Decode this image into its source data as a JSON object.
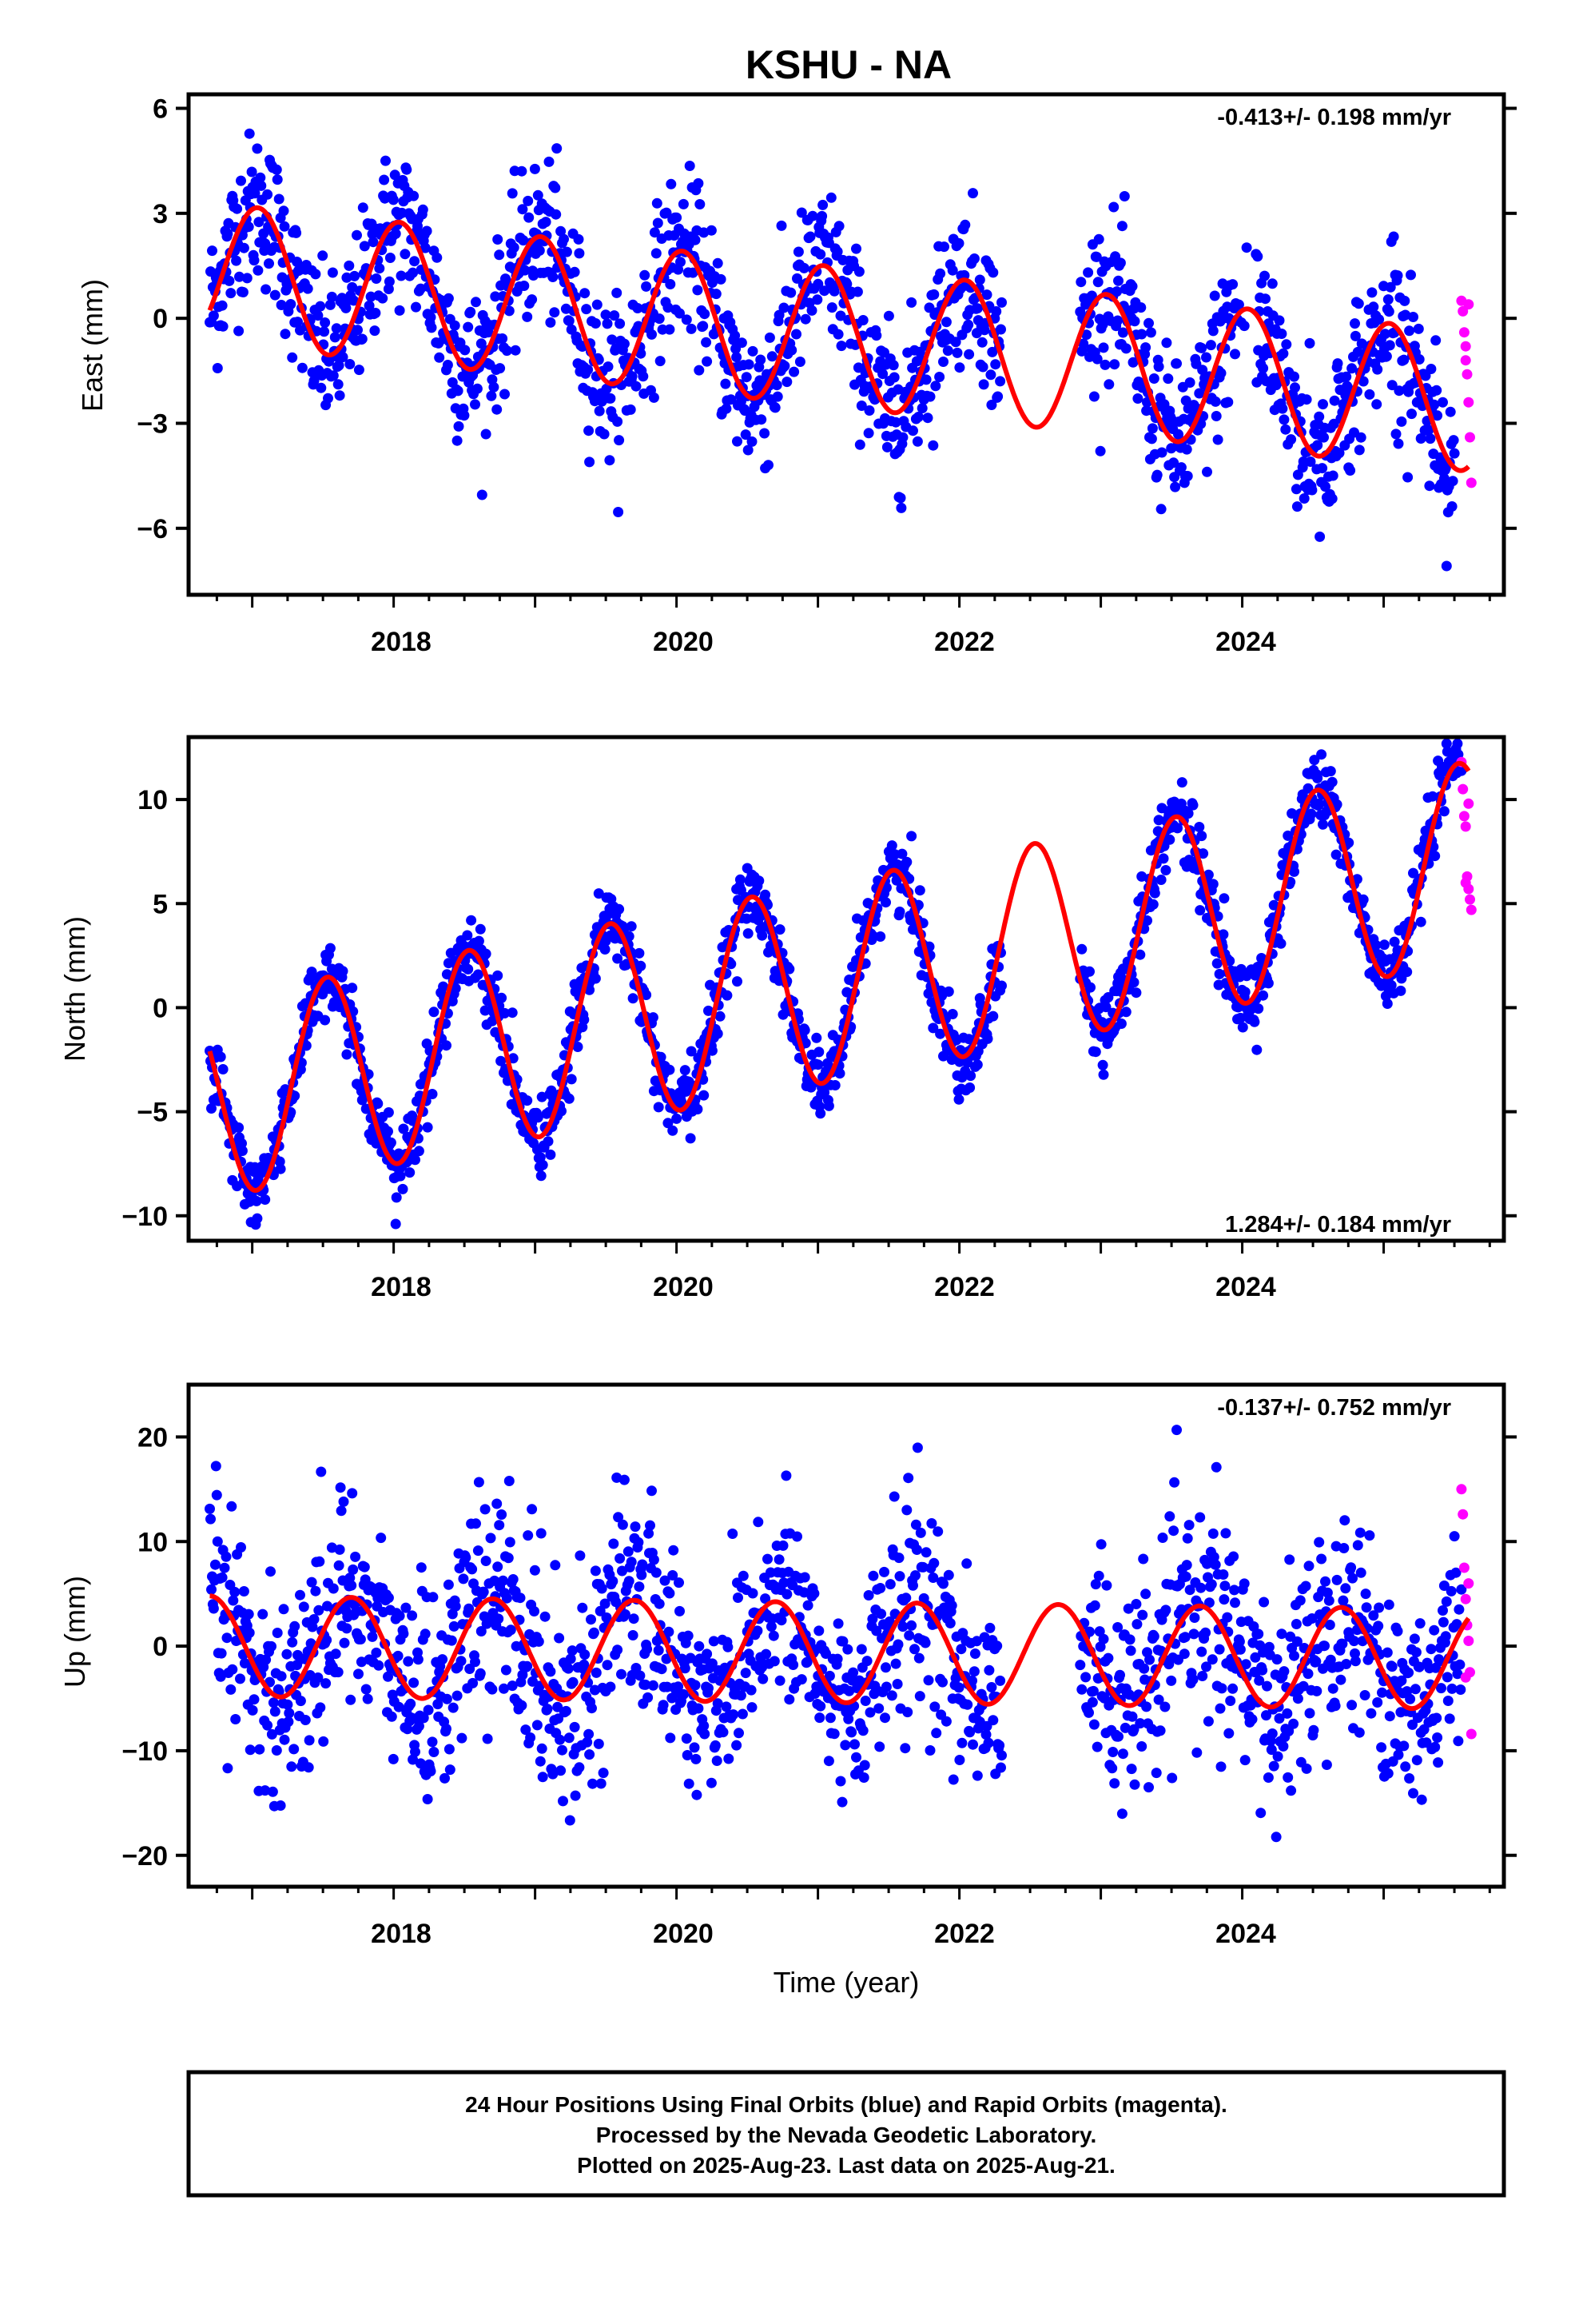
{
  "title": "KSHU - NA",
  "xlabel": "Time (year)",
  "footer_lines": [
    "24 Hour Positions Using Final Orbits (blue) and Rapid Orbits (magenta).",
    "Processed by the Nevada Geodetic Laboratory.",
    "Plotted on 2025-Aug-23. Last data on 2025-Aug-21."
  ],
  "colors": {
    "final": "#0000ff",
    "rapid": "#ff00ff",
    "fit": "#ff0000",
    "frame": "#000000"
  },
  "chart_data": [
    {
      "type": "scatter",
      "ylabel": "East (mm)",
      "rate_label": "-0.413+/- 0.198 mm/yr",
      "rate_position": "top-right",
      "xlim": [
        2016.55,
        2025.85
      ],
      "ylim": [
        -7.9,
        6.4
      ],
      "xticks": [
        2018,
        2020,
        2022,
        2024
      ],
      "yticks": [
        -6,
        -3,
        0,
        3,
        6
      ],
      "ytick_labels": [
        "−6",
        "−3",
        "0",
        "3",
        "6"
      ],
      "fit_model": {
        "intercept_at_2016_7": 1.3,
        "rate_mm_per_yr": -0.413,
        "annual_amplitude": 2.0,
        "annual_peak_fraction": 0.04
      },
      "final_points_note": "daily solutions 2016.7–2025.48, scatter about the fit",
      "noise_mm": 1.1,
      "rapid_points": {
        "x": [
          2025.55,
          2025.56,
          2025.57,
          2025.58,
          2025.59,
          2025.6,
          2025.61,
          2025.62,
          2025.6,
          2025.58
        ],
        "y": [
          0.5,
          0.2,
          -0.4,
          -1.2,
          -1.6,
          -2.4,
          -3.4,
          -4.7,
          0.4,
          -0.8
        ]
      }
    },
    {
      "type": "scatter",
      "ylabel": "North (mm)",
      "rate_label": "1.284+/- 0.184 mm/yr",
      "rate_position": "bottom-right",
      "xlim": [
        2016.55,
        2025.85
      ],
      "ylim": [
        -11.2,
        13.0
      ],
      "xticks": [
        2018,
        2020,
        2022,
        2024
      ],
      "yticks": [
        -10,
        -5,
        0,
        5,
        10
      ],
      "ytick_labels": [
        "−10",
        "−5",
        "0",
        "5",
        "10"
      ],
      "fit_model": {
        "intercept_at_2016_7": -4.4,
        "rate_mm_per_yr": 1.284,
        "annual_amplitude": 4.8,
        "annual_peak_fraction": 0.53
      },
      "final_points_note": "daily solutions 2016.7–2025.55, scatter about the fit",
      "noise_mm": 0.9,
      "rapid_points": {
        "x": [
          2025.55,
          2025.56,
          2025.57,
          2025.58,
          2025.59,
          2025.6,
          2025.61,
          2025.62,
          2025.58,
          2025.6
        ],
        "y": [
          11.8,
          10.5,
          9.2,
          8.7,
          6.3,
          5.7,
          5.2,
          4.7,
          6.0,
          9.8
        ]
      }
    },
    {
      "type": "scatter",
      "ylabel": "Up (mm)",
      "rate_label": "-0.137+/- 0.752 mm/yr",
      "rate_position": "top-right",
      "xlim": [
        2016.55,
        2025.85
      ],
      "ylim": [
        -23,
        25
      ],
      "xticks": [
        2018,
        2020,
        2022,
        2024
      ],
      "yticks": [
        -20,
        -10,
        0,
        10,
        20
      ],
      "ytick_labels": [
        "−20",
        "−10",
        "0",
        "10",
        "20"
      ],
      "fit_model": {
        "intercept_at_2016_7": 0.0,
        "rate_mm_per_yr": -0.137,
        "annual_amplitude": 4.8,
        "annual_peak_fraction": 0.7
      },
      "final_points_note": "daily solutions 2016.7–2025.55, scatter about the fit",
      "noise_mm": 5.0,
      "rapid_points": {
        "x": [
          2025.55,
          2025.56,
          2025.57,
          2025.58,
          2025.59,
          2025.6,
          2025.61,
          2025.62,
          2025.58,
          2025.6
        ],
        "y": [
          15,
          12.6,
          7.5,
          4.5,
          2.0,
          0.5,
          -2.5,
          -8.4,
          -3.0,
          6.0
        ]
      }
    }
  ]
}
